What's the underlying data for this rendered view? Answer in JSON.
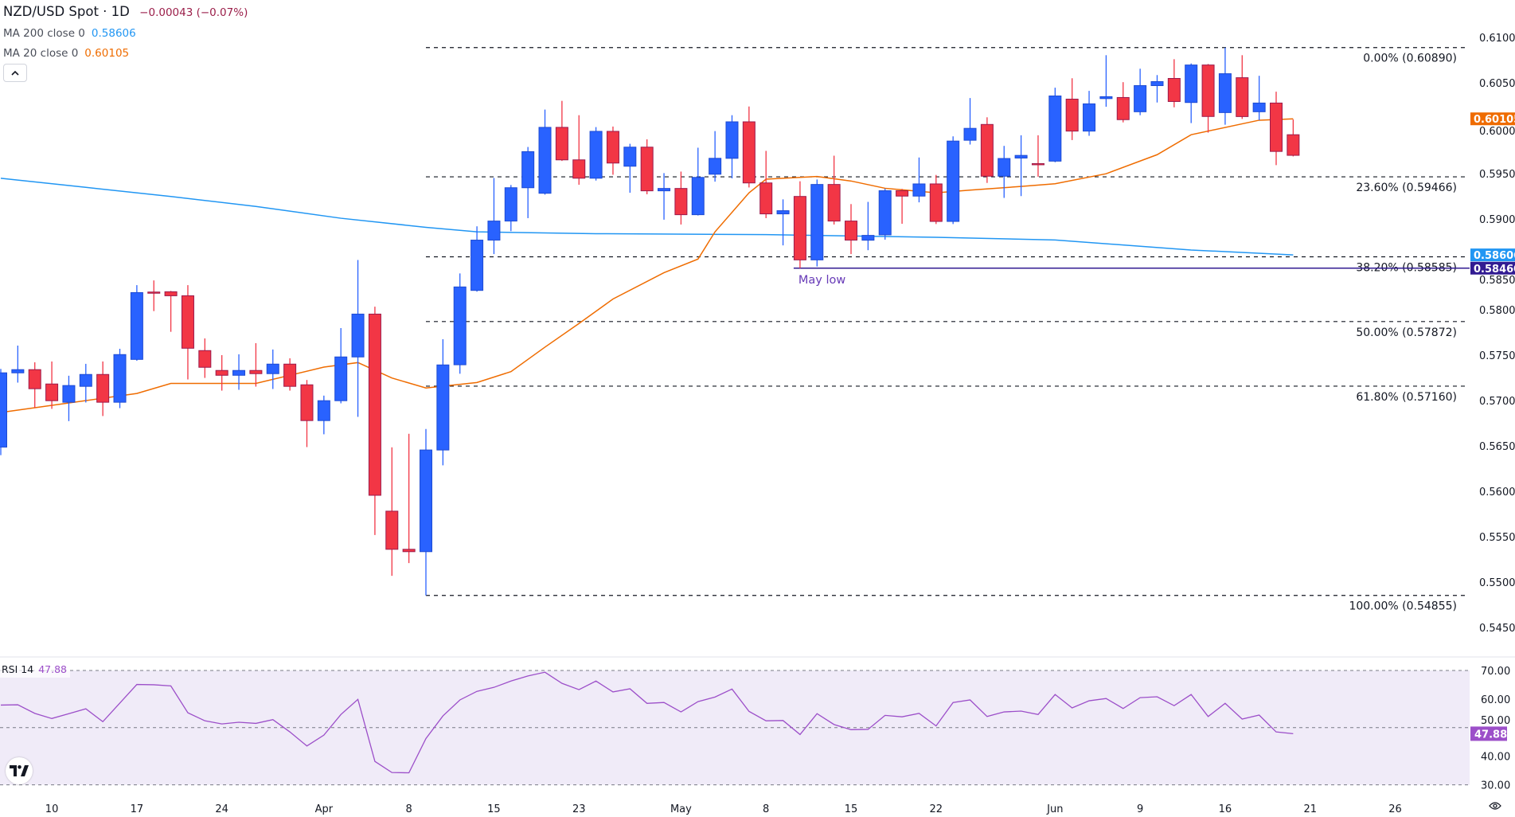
{
  "legend": {
    "symbol": "NZD/USD Spot · 1D",
    "change": "−0.00043 (−0.07%)",
    "ma200_label": "MA 200 close 0",
    "ma200_value": "0.58606",
    "ma20_label": "MA 20 close 0",
    "ma20_value": "0.60105",
    "collapse_icon": "chevron-up-icon"
  },
  "rsi_legend": {
    "label": "RSI 14",
    "value": "47.88"
  },
  "colors": {
    "up": "#2962ff",
    "down": "#f23645",
    "ma20": "#ef6c00",
    "ma200": "#2196f3",
    "may_low": "#311b92",
    "rsi": "#9c4fc9",
    "rsi_band": "#f0ebf8",
    "change": "#9b1f4a"
  },
  "chart_data": [
    {
      "type": "candlestick",
      "title": "NZD/USD Spot · 1D",
      "x_ticks": [
        {
          "bar": 3,
          "label": "10"
        },
        {
          "bar": 8,
          "label": "17"
        },
        {
          "bar": 13,
          "label": "24"
        },
        {
          "bar": 19,
          "label": "Apr"
        },
        {
          "bar": 24,
          "label": "8"
        },
        {
          "bar": 29,
          "label": "15"
        },
        {
          "bar": 34,
          "label": "23"
        },
        {
          "bar": 40,
          "label": "May"
        },
        {
          "bar": 45,
          "label": "8"
        },
        {
          "bar": 50,
          "label": "15"
        },
        {
          "bar": 55,
          "label": "22"
        },
        {
          "bar": 62,
          "label": "Jun"
        },
        {
          "bar": 67,
          "label": "9"
        },
        {
          "bar": 72,
          "label": "16"
        },
        {
          "bar": 77,
          "label": "21"
        },
        {
          "bar": 82,
          "label": "26"
        }
      ],
      "ylim": [
        0.5425,
        0.6118
      ],
      "y_ticks": [
        "0.54500",
        "0.55000",
        "0.55500",
        "0.56000",
        "0.56500",
        "0.57000",
        "0.57500",
        "0.58000",
        "0.58500",
        "0.59000",
        "0.59500",
        "0.60000",
        "0.60500",
        "0.61000"
      ],
      "candles_ohlc": [
        [
          0.56489,
          0.5735,
          0.564,
          0.57307
        ],
        [
          0.57307,
          0.57607,
          0.57199,
          0.57342
        ],
        [
          0.57342,
          0.57423,
          0.56921,
          0.57132
        ],
        [
          0.57184,
          0.57432,
          0.5691,
          0.57
        ],
        [
          0.56983,
          0.57275,
          0.56775,
          0.57167
        ],
        [
          0.57158,
          0.57406,
          0.5698,
          0.57289
        ],
        [
          0.57289,
          0.57432,
          0.56831,
          0.56983
        ],
        [
          0.56983,
          0.57572,
          0.56918,
          0.57508
        ],
        [
          0.57455,
          0.58273,
          0.5744,
          0.58191
        ],
        [
          0.58197,
          0.58325,
          0.57987,
          0.58191
        ],
        [
          0.582,
          0.58209,
          0.57759,
          0.58156
        ],
        [
          0.58156,
          0.58273,
          0.57234,
          0.57578
        ],
        [
          0.57552,
          0.57686,
          0.57251,
          0.57368
        ],
        [
          0.57333,
          0.57502,
          0.57111,
          0.5728
        ],
        [
          0.5728,
          0.57511,
          0.5712,
          0.57333
        ],
        [
          0.57333,
          0.57634,
          0.57155,
          0.57298
        ],
        [
          0.57298,
          0.57564,
          0.57129,
          0.57403
        ],
        [
          0.57403,
          0.57467,
          0.57111,
          0.57158
        ],
        [
          0.57175,
          0.57228,
          0.56489,
          0.56781
        ],
        [
          0.56781,
          0.57056,
          0.5663,
          0.57
        ],
        [
          0.57,
          0.578,
          0.56971,
          0.57482
        ],
        [
          0.57482,
          0.5855,
          0.56822,
          0.57954
        ],
        [
          0.57954,
          0.58036,
          0.5552,
          0.55958
        ],
        [
          0.55783,
          0.56486,
          0.55071,
          0.55363
        ],
        [
          0.55363,
          0.56635,
          0.55211,
          0.55337
        ],
        [
          0.55337,
          0.56688,
          0.54855,
          0.56457
        ],
        [
          0.56457,
          0.57677,
          0.56288,
          0.57394
        ],
        [
          0.57396,
          0.58402,
          0.57297,
          0.58253
        ],
        [
          0.58215,
          0.58921,
          0.58201,
          0.58769
        ],
        [
          0.58769,
          0.59454,
          0.58615,
          0.58979
        ],
        [
          0.58979,
          0.59376,
          0.58868,
          0.59346
        ],
        [
          0.59346,
          0.59795,
          0.59011,
          0.59743
        ],
        [
          0.59285,
          0.60207,
          0.5927,
          0.60011
        ],
        [
          0.60011,
          0.60303,
          0.59641,
          0.59653
        ],
        [
          0.59653,
          0.60145,
          0.59379,
          0.59451
        ],
        [
          0.59451,
          0.60014,
          0.59425,
          0.59967
        ],
        [
          0.59967,
          0.6002,
          0.59489,
          0.59618
        ],
        [
          0.59583,
          0.5983,
          0.59291,
          0.59793
        ],
        [
          0.59793,
          0.59879,
          0.59274,
          0.59312
        ],
        [
          0.59312,
          0.59507,
          0.58994,
          0.59338
        ],
        [
          0.59338,
          0.59524,
          0.58941,
          0.59049
        ],
        [
          0.59049,
          0.59787,
          0.5904,
          0.5946
        ],
        [
          0.59495,
          0.5997,
          0.59413,
          0.5967
        ],
        [
          0.5967,
          0.60145,
          0.59449,
          0.60072
        ],
        [
          0.60072,
          0.60241,
          0.59349,
          0.59399
        ],
        [
          0.59399,
          0.59752,
          0.59011,
          0.59058
        ],
        [
          0.59058,
          0.59218,
          0.58711,
          0.59093
        ],
        [
          0.5925,
          0.59417,
          0.5846,
          0.58551
        ],
        [
          0.58551,
          0.59437,
          0.58478,
          0.59382
        ],
        [
          0.59382,
          0.59699,
          0.58941,
          0.58979
        ],
        [
          0.58979,
          0.59166,
          0.58615,
          0.58769
        ],
        [
          0.58768,
          0.5919,
          0.58658,
          0.58821
        ],
        [
          0.58827,
          0.59336,
          0.58774,
          0.59313
        ],
        [
          0.59313,
          0.59333,
          0.58949,
          0.59254
        ],
        [
          0.59254,
          0.59679,
          0.59185,
          0.59388
        ],
        [
          0.59388,
          0.59487,
          0.58946,
          0.58975
        ],
        [
          0.58975,
          0.59912,
          0.58946,
          0.5986
        ],
        [
          0.59869,
          0.60334,
          0.59822,
          0.6
        ],
        [
          0.60043,
          0.60122,
          0.59399,
          0.59473
        ],
        [
          0.59473,
          0.59807,
          0.59234,
          0.59668
        ],
        [
          0.59673,
          0.59924,
          0.59254,
          0.59702
        ],
        [
          0.59612,
          0.59924,
          0.59467,
          0.59609
        ],
        [
          0.59639,
          0.60448,
          0.59627,
          0.60357
        ],
        [
          0.60322,
          0.60552,
          0.59871,
          0.5997
        ],
        [
          0.5997,
          0.60413,
          0.59918,
          0.6027
        ],
        [
          0.60328,
          0.60806,
          0.60238,
          0.60349
        ],
        [
          0.6034,
          0.60509,
          0.60066,
          0.60096
        ],
        [
          0.60183,
          0.60657,
          0.60145,
          0.60471
        ],
        [
          0.60471,
          0.60587,
          0.60285,
          0.60515
        ],
        [
          0.6055,
          0.60762,
          0.60232,
          0.60296
        ],
        [
          0.60285,
          0.60715,
          0.60058,
          0.60698
        ],
        [
          0.60698,
          0.60709,
          0.59953,
          0.60131
        ],
        [
          0.60174,
          0.6089,
          0.6004,
          0.60602
        ],
        [
          0.60558,
          0.60806,
          0.60104,
          0.6013
        ],
        [
          0.60183,
          0.60579,
          0.6009,
          0.60279
        ],
        [
          0.60279,
          0.60404,
          0.59595,
          0.59746
        ],
        [
          0.5993,
          0.60098,
          0.59691,
          0.59703
        ]
      ],
      "series": [
        {
          "name": "MA 200 close 0",
          "points": [
            [
              0,
              0.5945
            ],
            [
              5,
              0.5935
            ],
            [
              10,
              0.5925
            ],
            [
              15,
              0.5914
            ],
            [
              20,
              0.5901
            ],
            [
              25,
              0.5891
            ],
            [
              28,
              0.5886
            ],
            [
              35,
              0.5884
            ],
            [
              45,
              0.5883
            ],
            [
              55,
              0.588
            ],
            [
              62,
              0.5877
            ],
            [
              70,
              0.5866
            ],
            [
              76,
              0.58606
            ]
          ]
        },
        {
          "name": "MA 20 close 0",
          "points": [
            [
              0,
              0.5687
            ],
            [
              8,
              0.5708
            ],
            [
              10,
              0.5719
            ],
            [
              15,
              0.5719
            ],
            [
              19,
              0.5737
            ],
            [
              21,
              0.5742
            ],
            [
              23,
              0.5725
            ],
            [
              25,
              0.5714
            ],
            [
              28,
              0.572
            ],
            [
              30,
              0.5732
            ],
            [
              32,
              0.5759
            ],
            [
              34,
              0.5785
            ],
            [
              36,
              0.5812
            ],
            [
              39,
              0.5841
            ],
            [
              41,
              0.5856
            ],
            [
              42,
              0.5886
            ],
            [
              44,
              0.5929
            ],
            [
              45,
              0.5944
            ],
            [
              48,
              0.5947
            ],
            [
              50,
              0.5942
            ],
            [
              52,
              0.5934
            ],
            [
              55,
              0.5929
            ],
            [
              57,
              0.5932
            ],
            [
              60,
              0.5936
            ],
            [
              62,
              0.5939
            ],
            [
              65,
              0.595
            ],
            [
              68,
              0.5971
            ],
            [
              70,
              0.5993
            ],
            [
              74,
              0.6009
            ],
            [
              76,
              0.60105
            ]
          ]
        }
      ],
      "fib_start_bar": 25,
      "fib_levels": [
        {
          "price": 0.6089,
          "label": "0.00% (0.60890)"
        },
        {
          "price": 0.59466,
          "label": "23.60% (0.59466)"
        },
        {
          "price": 0.58585,
          "label": "38.20% (0.58585)"
        },
        {
          "price": 0.57872,
          "label": "50.00% (0.57872)"
        },
        {
          "price": 0.5716,
          "label": "61.80% (0.57160)"
        },
        {
          "price": 0.54855,
          "label": "100.00% (0.54855)"
        }
      ],
      "annotation": {
        "label": "May low",
        "price": 0.5846,
        "start_bar": 47
      },
      "price_badges": [
        {
          "label": "0.60105",
          "price": 0.60105,
          "color": "#ef6c00"
        },
        {
          "label": "0.58606",
          "price": 0.58606,
          "color": "#2196f3"
        },
        {
          "label": "0.58460",
          "price": 0.5846,
          "color": "#311b92"
        }
      ]
    },
    {
      "type": "line",
      "title": "RSI 14",
      "ylim": [
        30,
        70
      ],
      "y_ticks": [
        "30.00",
        "40.00",
        "50.00",
        "60.00",
        "70.00"
      ],
      "levels": [
        70,
        50,
        30
      ],
      "values": [
        57.9,
        58.0,
        55.0,
        53.2,
        54.9,
        56.6,
        52.1,
        58.6,
        65.1,
        65.0,
        64.6,
        55.2,
        52.4,
        51.3,
        51.9,
        51.5,
        52.8,
        48.5,
        43.6,
        47.4,
        54.6,
        59.9,
        38.2,
        34.3,
        34.2,
        46.2,
        54.1,
        59.7,
        62.7,
        64.1,
        66.3,
        68.1,
        69.4,
        65.5,
        63.3,
        66.3,
        62.5,
        63.6,
        58.5,
        58.8,
        55.5,
        59.1,
        60.7,
        63.5,
        55.7,
        52.4,
        52.5,
        47.6,
        54.9,
        51.1,
        49.3,
        49.4,
        54.3,
        53.8,
        55.0,
        50.6,
        58.8,
        59.7,
        53.9,
        55.5,
        55.8,
        54.6,
        61.6,
        56.9,
        59.4,
        60.2,
        56.7,
        60.5,
        60.8,
        57.7,
        61.6,
        53.9,
        58.5,
        53.0,
        54.4,
        48.5,
        47.88
      ],
      "badge": "47.88"
    }
  ]
}
